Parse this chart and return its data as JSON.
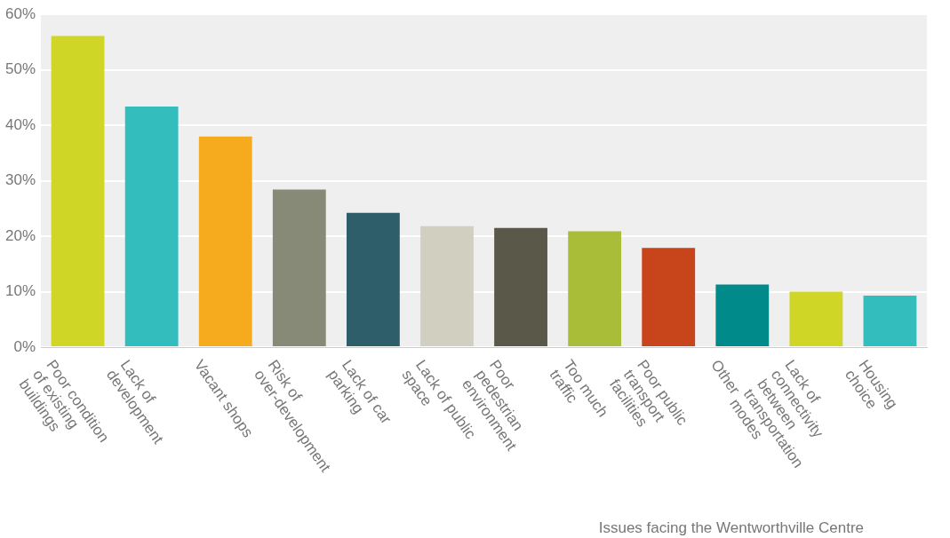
{
  "chart_data": {
    "type": "bar",
    "xlabel": "Issues facing the Wentworthville Centre",
    "categories": [
      "Poor condition of existing buildings",
      "Lack of development",
      "Vacant shops",
      "Risk of over-development",
      "Lack of car parking",
      "Lack of public space",
      "Poor pedestrian environment",
      "Too much traffic",
      "Poor public transport facilities",
      "Other",
      "Lack of connectivity between transportation modes",
      "Housing choice"
    ],
    "values": [
      56.1,
      43.4,
      38.0,
      28.4,
      24.2,
      21.8,
      21.5,
      20.9,
      17.9,
      11.3,
      10.0,
      9.3
    ],
    "colors": [
      "#cfd626",
      "#33bdbd",
      "#f6ab1e",
      "#888a78",
      "#2e5e6a",
      "#d0cfc0",
      "#5a5849",
      "#a9bd38",
      "#c8441a",
      "#008a8a",
      "#cfd626",
      "#33bdbd"
    ],
    "ylim": [
      0,
      60
    ],
    "yticks": [
      {
        "value": 0,
        "label": "0%"
      },
      {
        "value": 10,
        "label": "10%"
      },
      {
        "value": 20,
        "label": "20%"
      },
      {
        "value": 30,
        "label": "30%"
      },
      {
        "value": 40,
        "label": "40%"
      },
      {
        "value": 50,
        "label": "50%"
      },
      {
        "value": 60,
        "label": "60%"
      }
    ],
    "grid": "y",
    "legend": false
  }
}
